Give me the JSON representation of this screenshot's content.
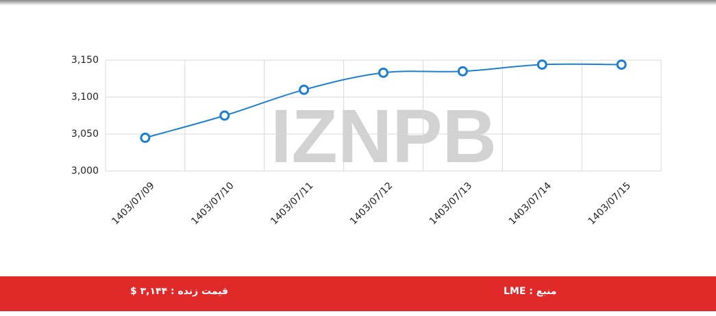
{
  "chart_data": {
    "type": "line",
    "watermark": "IZNPB",
    "categories": [
      "1403/07/09",
      "1403/07/10",
      "1403/07/11",
      "1403/07/12",
      "1403/07/13",
      "1403/07/14",
      "1403/07/15"
    ],
    "series": [
      {
        "color": "#1a7fd4",
        "values": [
          3045,
          3075,
          3110,
          3133,
          3135,
          3144,
          3144
        ]
      }
    ],
    "ylim": [
      3000,
      3150
    ],
    "yticks": [
      {
        "value": 3000,
        "label": "3,000"
      },
      {
        "value": 3050,
        "label": "3,050"
      },
      {
        "value": 3100,
        "label": "3,100"
      },
      {
        "value": 3150,
        "label": "3,150"
      }
    ],
    "grid": true
  },
  "footer": {
    "source": "منبع : LME",
    "live_price": "قیمت زنده : ۳,۱۴۴ $"
  }
}
